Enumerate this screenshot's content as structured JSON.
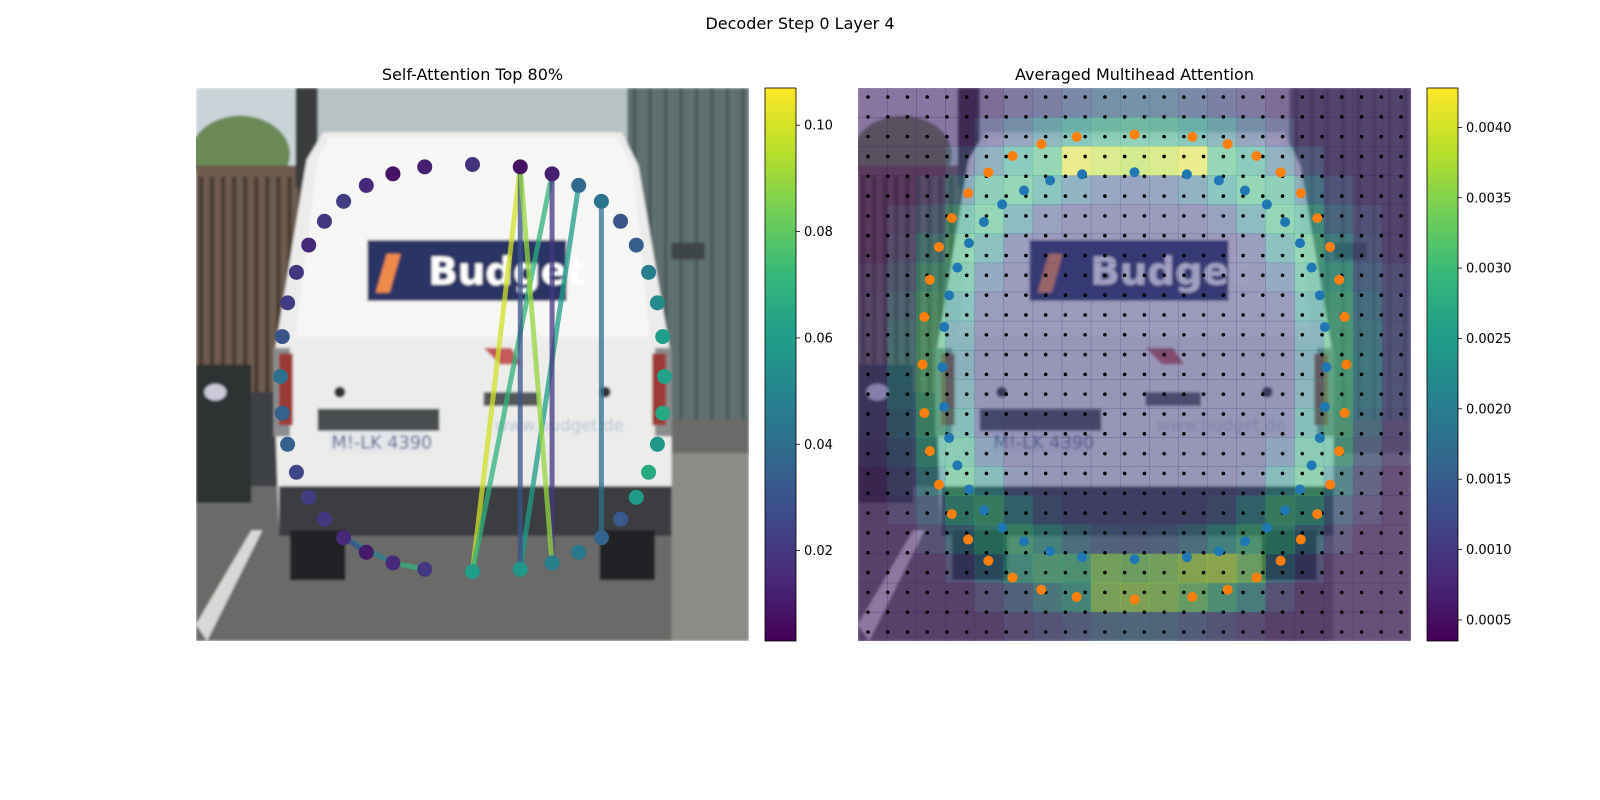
{
  "figure": {
    "title": "Decoder Step 0 Layer 4"
  },
  "colors": {
    "viridis": [
      "#440154",
      "#482878",
      "#3e4989",
      "#31688e",
      "#26828e",
      "#1f9e89",
      "#35b779",
      "#6ece58",
      "#b5de2b",
      "#fde725"
    ],
    "blue_points": "#1f77b4",
    "orange_points": "#ff7f0e",
    "grid_dots": "#000000"
  },
  "photo": {
    "subject": "white van rear view",
    "logo_text": "Budget",
    "plate_text": "M!-LK 4390",
    "url_text": "www.budget.de"
  },
  "chart_data": [
    {
      "type": "scatter",
      "title": "Self-Attention Top 80%",
      "colorbar": {
        "min": 0.003,
        "max": 0.107,
        "ticks": [
          0.02,
          0.04,
          0.06,
          0.08,
          0.1
        ],
        "tick_labels": [
          "0.02",
          "0.04",
          "0.06",
          "0.08",
          "0.10"
        ],
        "colormap": "viridis"
      },
      "points_value": [
        0.061,
        0.058,
        0.048,
        0.045,
        0.036,
        0.032,
        0.06,
        0.066,
        0.058,
        0.065,
        0.062,
        0.061,
        0.053,
        0.048,
        0.034,
        0.031,
        0.043,
        0.038,
        0.012,
        0.008,
        0.018,
        0.012,
        0.008,
        0.015,
        0.022,
        0.02,
        0.015,
        0.02,
        0.022,
        0.03,
        0.041,
        0.035,
        0.035,
        0.025,
        0.022,
        0.02,
        0.015,
        0.01,
        0.015,
        0.02
      ],
      "attention_links": [
        {
          "from": 0,
          "to": 19,
          "value": 0.1
        },
        {
          "from": 0,
          "to": 18,
          "value": 0.07
        },
        {
          "from": 1,
          "to": 17,
          "value": 0.06
        },
        {
          "from": 1,
          "to": 19,
          "value": 0.03
        },
        {
          "from": 2,
          "to": 18,
          "value": 0.02
        },
        {
          "from": 2,
          "to": 19,
          "value": 0.09
        },
        {
          "from": 4,
          "to": 16,
          "value": 0.04
        },
        {
          "from": 36,
          "to": 38,
          "value": 0.05
        },
        {
          "from": 38,
          "to": 39,
          "value": 0.07
        },
        {
          "from": 37,
          "to": 36,
          "value": 0.03
        }
      ]
    },
    {
      "type": "heatmap",
      "title": "Averaged Multihead Attention",
      "grid": [
        19,
        19
      ],
      "colorbar": {
        "min": 0.00035,
        "max": 0.00428,
        "ticks": [
          0.0005,
          0.001,
          0.0015,
          0.002,
          0.0025,
          0.003,
          0.0035,
          0.004
        ],
        "tick_labels": [
          "0.0005",
          "0.0010",
          "0.0015",
          "0.0020",
          "0.0025",
          "0.0030",
          "0.0035",
          "0.0040"
        ],
        "colormap": "viridis"
      },
      "series": [
        {
          "name": "",
          "color": "blue",
          "marker": "circle"
        },
        {
          "name": "",
          "color": "orange",
          "marker": "circle"
        }
      ]
    }
  ]
}
